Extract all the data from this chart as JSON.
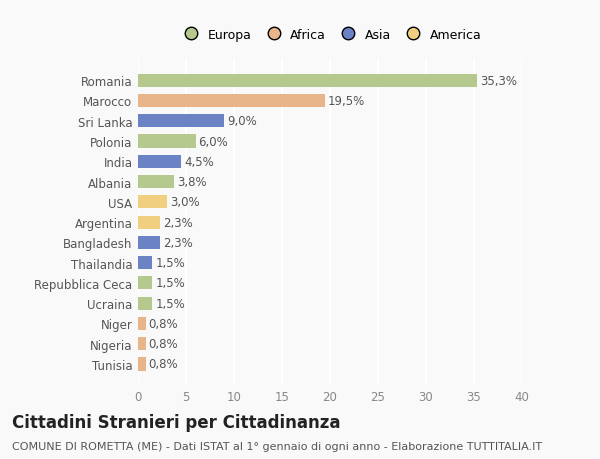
{
  "categories": [
    "Romania",
    "Marocco",
    "Sri Lanka",
    "Polonia",
    "India",
    "Albania",
    "USA",
    "Argentina",
    "Bangladesh",
    "Thailandia",
    "Repubblica Ceca",
    "Ucraina",
    "Niger",
    "Nigeria",
    "Tunisia"
  ],
  "values": [
    35.3,
    19.5,
    9.0,
    6.0,
    4.5,
    3.8,
    3.0,
    2.3,
    2.3,
    1.5,
    1.5,
    1.5,
    0.8,
    0.8,
    0.8
  ],
  "labels": [
    "35,3%",
    "19,5%",
    "9,0%",
    "6,0%",
    "4,5%",
    "3,8%",
    "3,0%",
    "2,3%",
    "2,3%",
    "1,5%",
    "1,5%",
    "1,5%",
    "0,8%",
    "0,8%",
    "0,8%"
  ],
  "colors": [
    "#b5c98e",
    "#e8b48a",
    "#6b82c4",
    "#b5c98e",
    "#6b82c4",
    "#b5c98e",
    "#f0d080",
    "#f0d080",
    "#6b82c4",
    "#6b82c4",
    "#b5c98e",
    "#b5c98e",
    "#e8b48a",
    "#e8b48a",
    "#e8b48a"
  ],
  "legend_labels": [
    "Europa",
    "Africa",
    "Asia",
    "America"
  ],
  "legend_colors": [
    "#b5c98e",
    "#e8b48a",
    "#6b82c4",
    "#f0d080"
  ],
  "xlim": [
    0,
    40
  ],
  "xticks": [
    0,
    5,
    10,
    15,
    20,
    25,
    30,
    35,
    40
  ],
  "title": "Cittadini Stranieri per Cittadinanza",
  "subtitle": "COMUNE DI ROMETTA (ME) - Dati ISTAT al 1° gennaio di ogni anno - Elaborazione TUTTITALIA.IT",
  "background_color": "#f9f9f9",
  "grid_color": "#ffffff",
  "bar_height": 0.65,
  "label_fontsize": 8.5,
  "tick_fontsize": 8.5,
  "title_fontsize": 12,
  "subtitle_fontsize": 8
}
